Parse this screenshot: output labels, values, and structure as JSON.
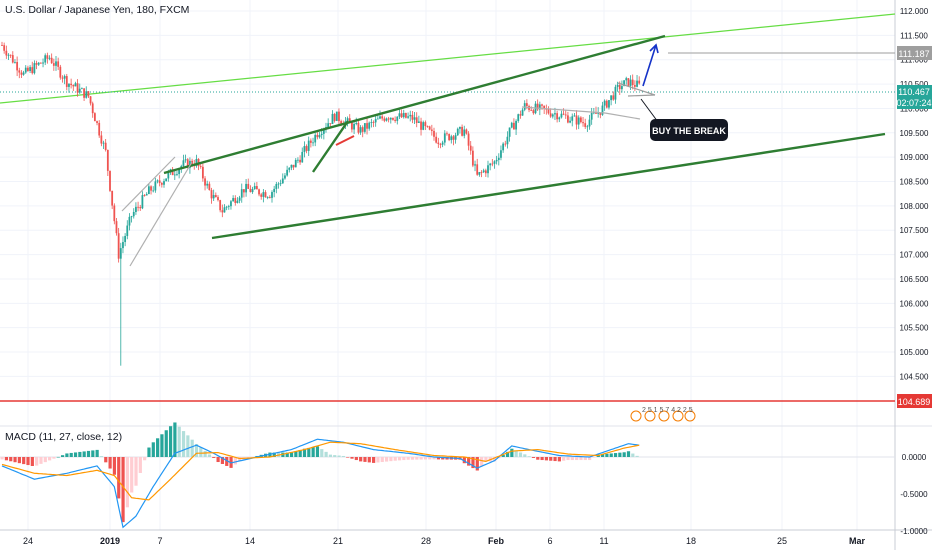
{
  "header": {
    "title": "U.S. Dollar / Japanese Yen, 180, FXCM"
  },
  "price_axis": {
    "ticks": [
      "112.000",
      "111.500",
      "111.000",
      "110.500",
      "110.000",
      "109.500",
      "109.000",
      "108.500",
      "108.000",
      "107.500",
      "107.000",
      "106.500",
      "106.000",
      "105.500",
      "105.000",
      "104.500"
    ],
    "last_price": "110.467",
    "countdown": "02:07:24",
    "target_price": "111.187",
    "support_price": "104.689"
  },
  "macd_axis": {
    "ticks": [
      "0.0000",
      "-0.5000",
      "-1.0000"
    ]
  },
  "time_axis": {
    "ticks": [
      "24",
      "2019",
      "7",
      "14",
      "21",
      "28",
      "Feb",
      "6",
      "11",
      "18",
      "25",
      "Mar"
    ]
  },
  "indicator": {
    "label": "MACD (11, 27, close, 12)"
  },
  "annotation": {
    "callout": "BUY THE BREAK"
  },
  "events_text": "2 5 1 5 7 4 2 2 5",
  "colors": {
    "up": "#26a69a",
    "down": "#ef5350",
    "trend": "#2e7d32",
    "long_trend": "#66dd44",
    "support": "#e53935",
    "last_price_line": "#26a69a",
    "macd_line": "#2196f3",
    "signal_line": "#ff9800",
    "arrow": "#1533c8",
    "callout_bg": "#131722"
  },
  "chart_data": [
    {
      "type": "candlestick",
      "title": "U.S. Dollar / Japanese Yen, 180, FXCM",
      "ylim": [
        104.45,
        112.1
      ],
      "x_ticks": [
        "24",
        "2019",
        "7",
        "14",
        "21",
        "28",
        "Feb",
        "6",
        "11",
        "18",
        "25",
        "Mar"
      ],
      "series": [
        {
          "anchors": [
            {
              "x": 0,
              "y": 111.3
            },
            {
              "x": 10,
              "y": 110.7
            },
            {
              "x": 22,
              "y": 111.05
            },
            {
              "x": 30,
              "y": 110.55
            },
            {
              "x": 40,
              "y": 110.25
            },
            {
              "x": 48,
              "y": 109.1
            },
            {
              "x": 54,
              "y": 107.0
            },
            {
              "x": 60,
              "y": 107.8
            },
            {
              "x": 68,
              "y": 108.3
            },
            {
              "x": 76,
              "y": 108.6
            },
            {
              "x": 84,
              "y": 108.85
            },
            {
              "x": 90,
              "y": 108.9
            },
            {
              "x": 96,
              "y": 108.3
            },
            {
              "x": 102,
              "y": 107.9
            },
            {
              "x": 112,
              "y": 108.35
            },
            {
              "x": 124,
              "y": 108.25
            },
            {
              "x": 138,
              "y": 109.0
            },
            {
              "x": 146,
              "y": 109.5
            },
            {
              "x": 154,
              "y": 109.85
            },
            {
              "x": 166,
              "y": 109.55
            },
            {
              "x": 178,
              "y": 109.85
            },
            {
              "x": 190,
              "y": 109.8
            },
            {
              "x": 202,
              "y": 109.35
            },
            {
              "x": 214,
              "y": 109.55
            },
            {
              "x": 220,
              "y": 108.6
            },
            {
              "x": 228,
              "y": 108.9
            },
            {
              "x": 236,
              "y": 109.6
            },
            {
              "x": 242,
              "y": 110.05
            },
            {
              "x": 256,
              "y": 109.9
            },
            {
              "x": 270,
              "y": 109.7
            },
            {
              "x": 278,
              "y": 110.0
            },
            {
              "x": 286,
              "y": 110.45
            },
            {
              "x": 290,
              "y": 110.55
            },
            {
              "x": 295,
              "y": 110.46
            }
          ],
          "special": [
            {
              "x": 55,
              "low": 104.72,
              "note": "flash-crash wick"
            }
          ]
        }
      ],
      "levels": [
        {
          "name": "last_price",
          "value": 110.467
        },
        {
          "name": "target",
          "value": 111.187
        },
        {
          "name": "support",
          "value": 104.689
        }
      ]
    },
    {
      "type": "line",
      "title": "MACD (11, 27, close, 12)",
      "ylim": [
        -1.05,
        0.35
      ],
      "series": [
        {
          "name": "MACD",
          "anchors": [
            {
              "x": 0,
              "y": -0.12
            },
            {
              "x": 15,
              "y": -0.3
            },
            {
              "x": 30,
              "y": -0.22
            },
            {
              "x": 44,
              "y": -0.12
            },
            {
              "x": 52,
              "y": -0.4
            },
            {
              "x": 56,
              "y": -0.95
            },
            {
              "x": 62,
              "y": -0.8
            },
            {
              "x": 70,
              "y": -0.4
            },
            {
              "x": 80,
              "y": 0.05
            },
            {
              "x": 90,
              "y": 0.16
            },
            {
              "x": 98,
              "y": 0.05
            },
            {
              "x": 106,
              "y": -0.08
            },
            {
              "x": 118,
              "y": 0.0
            },
            {
              "x": 134,
              "y": 0.1
            },
            {
              "x": 146,
              "y": 0.24
            },
            {
              "x": 158,
              "y": 0.2
            },
            {
              "x": 172,
              "y": 0.1
            },
            {
              "x": 188,
              "y": 0.05
            },
            {
              "x": 200,
              "y": 0.0
            },
            {
              "x": 212,
              "y": -0.02
            },
            {
              "x": 220,
              "y": -0.15
            },
            {
              "x": 228,
              "y": -0.05
            },
            {
              "x": 236,
              "y": 0.15
            },
            {
              "x": 244,
              "y": 0.1
            },
            {
              "x": 258,
              "y": 0.02
            },
            {
              "x": 272,
              "y": 0.0
            },
            {
              "x": 282,
              "y": 0.1
            },
            {
              "x": 290,
              "y": 0.18
            },
            {
              "x": 295,
              "y": 0.16
            }
          ]
        },
        {
          "name": "Signal",
          "anchors": [
            {
              "x": 0,
              "y": -0.1
            },
            {
              "x": 15,
              "y": -0.22
            },
            {
              "x": 30,
              "y": -0.25
            },
            {
              "x": 44,
              "y": -0.18
            },
            {
              "x": 52,
              "y": -0.25
            },
            {
              "x": 60,
              "y": -0.55
            },
            {
              "x": 68,
              "y": -0.58
            },
            {
              "x": 78,
              "y": -0.3
            },
            {
              "x": 90,
              "y": 0.05
            },
            {
              "x": 100,
              "y": 0.06
            },
            {
              "x": 110,
              "y": -0.02
            },
            {
              "x": 124,
              "y": 0.0
            },
            {
              "x": 140,
              "y": 0.1
            },
            {
              "x": 152,
              "y": 0.2
            },
            {
              "x": 166,
              "y": 0.18
            },
            {
              "x": 182,
              "y": 0.1
            },
            {
              "x": 200,
              "y": 0.02
            },
            {
              "x": 214,
              "y": 0.0
            },
            {
              "x": 224,
              "y": -0.06
            },
            {
              "x": 236,
              "y": 0.08
            },
            {
              "x": 248,
              "y": 0.1
            },
            {
              "x": 262,
              "y": 0.04
            },
            {
              "x": 276,
              "y": 0.02
            },
            {
              "x": 288,
              "y": 0.12
            },
            {
              "x": 295,
              "y": 0.16
            }
          ]
        }
      ]
    }
  ]
}
